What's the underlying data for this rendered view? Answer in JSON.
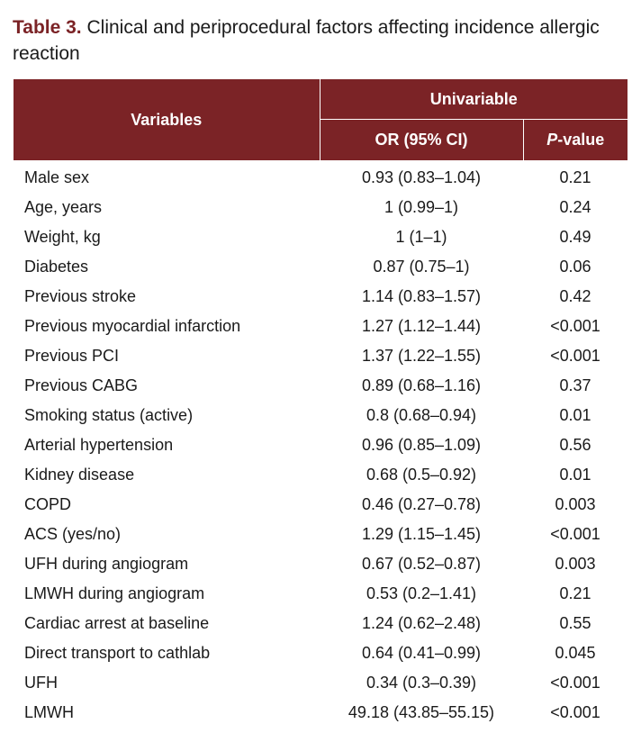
{
  "caption": {
    "label": "Table 3.",
    "text": "Clinical and periprocedural factors affecting incidence allergic reaction"
  },
  "header": {
    "variables": "Variables",
    "group": "Univariable",
    "or": "OR (95% CI)",
    "p_italic": "P",
    "p_rest": "-value"
  },
  "rows": [
    {
      "variable": "Male sex",
      "or": "0.93 (0.83–1.04)",
      "p": "0.21"
    },
    {
      "variable": "Age, years",
      "or": "1 (0.99–1)",
      "p": "0.24"
    },
    {
      "variable": "Weight, kg",
      "or": "1 (1–1)",
      "p": "0.49"
    },
    {
      "variable": "Diabetes",
      "or": "0.87 (0.75–1)",
      "p": "0.06"
    },
    {
      "variable": "Previous stroke",
      "or": "1.14 (0.83–1.57)",
      "p": "0.42"
    },
    {
      "variable": "Previous myocardial infarction",
      "or": "1.27 (1.12–1.44)",
      "p": "<0.001"
    },
    {
      "variable": "Previous PCI",
      "or": "1.37 (1.22–1.55)",
      "p": "<0.001"
    },
    {
      "variable": "Previous CABG",
      "or": "0.89 (0.68–1.16)",
      "p": "0.37"
    },
    {
      "variable": "Smoking status (active)",
      "or": "0.8 (0.68–0.94)",
      "p": "0.01"
    },
    {
      "variable": "Arterial hypertension",
      "or": "0.96 (0.85–1.09)",
      "p": "0.56"
    },
    {
      "variable": "Kidney disease",
      "or": "0.68 (0.5–0.92)",
      "p": "0.01"
    },
    {
      "variable": "COPD",
      "or": "0.46 (0.27–0.78)",
      "p": "0.003"
    },
    {
      "variable": "ACS (yes/no)",
      "or": "1.29 (1.15–1.45)",
      "p": "<0.001"
    },
    {
      "variable": "UFH during angiogram",
      "or": "0.67 (0.52–0.87)",
      "p": "0.003"
    },
    {
      "variable": "LMWH during angiogram",
      "or": "0.53 (0.2–1.41)",
      "p": "0.21"
    },
    {
      "variable": "Cardiac arrest at baseline",
      "or": "1.24 (0.62–2.48)",
      "p": "0.55"
    },
    {
      "variable": "Direct transport to cathlab",
      "or": "0.64 (0.41–0.99)",
      "p": "0.045"
    },
    {
      "variable": "UFH",
      "or": "0.34 (0.3–0.39)",
      "p": "<0.001"
    },
    {
      "variable": "LMWH",
      "or": "49.18 (43.85–55.15)",
      "p": "<0.001"
    }
  ]
}
